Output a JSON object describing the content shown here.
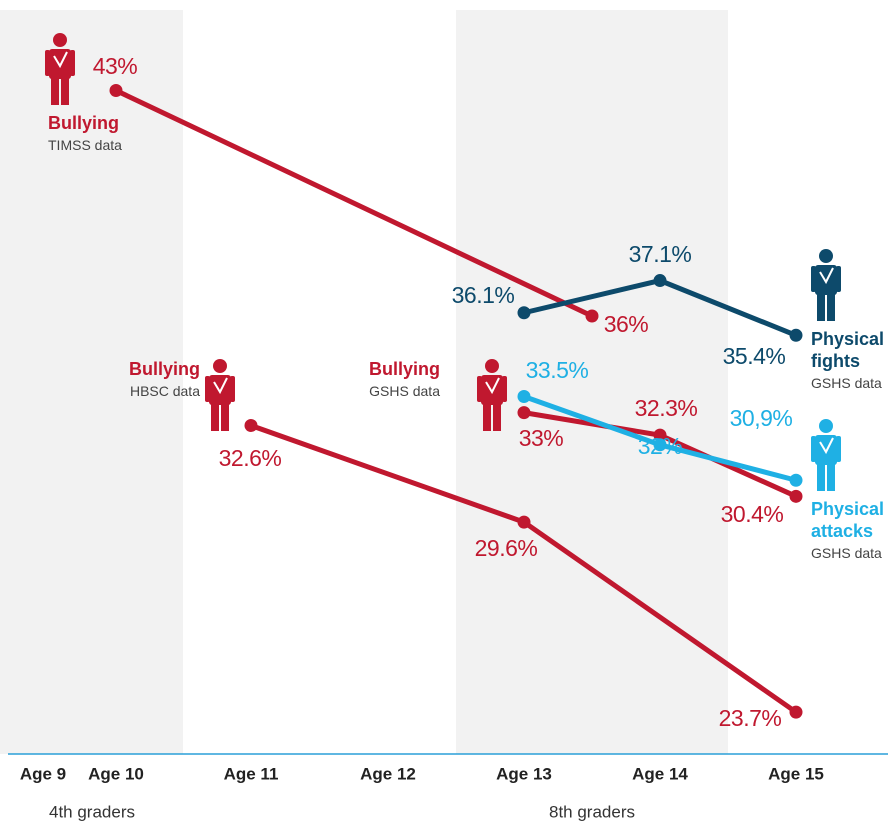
{
  "chart_data": {
    "type": "line",
    "xticks": [
      {
        "value": 9,
        "label": "Age 9"
      },
      {
        "value": 10,
        "label": "Age 10"
      },
      {
        "value": 11,
        "label": "Age 11"
      },
      {
        "value": 12,
        "label": "Age 12"
      },
      {
        "value": 13,
        "label": "Age 13"
      },
      {
        "value": 14,
        "label": "Age 14"
      },
      {
        "value": 15,
        "label": "Age 15"
      }
    ],
    "ylim": [
      22.4,
      45.5
    ],
    "annotations": [
      "4th graders",
      "8th graders"
    ],
    "series": [
      {
        "name": "Bullying",
        "source": "TIMSS data",
        "color": "#c0182f",
        "x": [
          10,
          13.5
        ],
        "values": [
          43,
          36
        ],
        "value_labels": [
          "43%",
          "36%"
        ]
      },
      {
        "name": "Bullying",
        "source": "HBSC data",
        "color": "#c0182f",
        "x": [
          11,
          13,
          15
        ],
        "values": [
          32.6,
          29.6,
          23.7
        ],
        "value_labels": [
          "32.6%",
          "29.6%",
          "23.7%"
        ]
      },
      {
        "name": "Bullying",
        "source": "GSHS data",
        "color": "#c0182f",
        "x": [
          13,
          14,
          15
        ],
        "values": [
          33,
          32.3,
          30.4
        ],
        "value_labels": [
          "33%",
          "32.3%",
          "30.4%"
        ]
      },
      {
        "name": "Physical fights",
        "source": "GSHS data",
        "color": "#0d4a6b",
        "x": [
          13,
          14,
          15
        ],
        "values": [
          36.1,
          37.1,
          35.4
        ],
        "value_labels": [
          "36.1%",
          "37.1%",
          "35.4%"
        ]
      },
      {
        "name": "Physical attacks",
        "source": "GSHS data",
        "color": "#1fb0e4",
        "x": [
          13,
          14,
          15
        ],
        "values": [
          33.5,
          32,
          30.9
        ],
        "value_labels": [
          "33.5%",
          "32%",
          "30,9%"
        ]
      }
    ]
  }
}
